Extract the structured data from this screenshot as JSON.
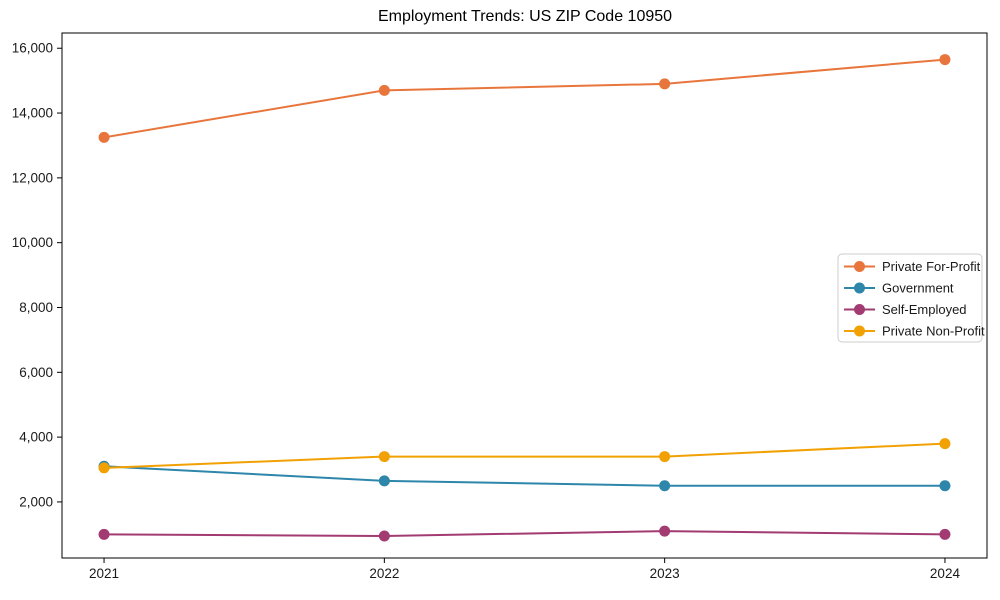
{
  "figure": {
    "background": "#ffffff"
  },
  "chart_data": {
    "type": "line",
    "title": "Employment Trends: US ZIP Code 10950",
    "xlabel": "",
    "ylabel": "",
    "x": [
      2021,
      2022,
      2023,
      2024
    ],
    "xtick_labels": [
      "2021",
      "2022",
      "2023",
      "2024"
    ],
    "yticks": [
      2000,
      4000,
      6000,
      8000,
      10000,
      12000,
      14000,
      16000
    ],
    "ytick_labels": [
      "2,000",
      "4,000",
      "6,000",
      "8,000",
      "10,000",
      "12,000",
      "14,000",
      "16,000"
    ],
    "xlim": [
      2020.85,
      2024.15
    ],
    "ylim": [
      270,
      16470
    ],
    "grid": false,
    "legend_position": "center right",
    "axis_color": "#000000",
    "text_color": "#1a1a1a",
    "series": [
      {
        "name": "Private For-Profit",
        "color": "#E8763C",
        "values": [
          13250,
          14700,
          14900,
          15650
        ]
      },
      {
        "name": "Government",
        "color": "#2E86AB",
        "values": [
          3100,
          2650,
          2500,
          2500
        ]
      },
      {
        "name": "Self-Employed",
        "color": "#A23B72",
        "values": [
          1000,
          950,
          1100,
          1000
        ]
      },
      {
        "name": "Private Non-Profit",
        "color": "#F2A104",
        "values": [
          3050,
          3400,
          3400,
          3800
        ]
      }
    ]
  }
}
